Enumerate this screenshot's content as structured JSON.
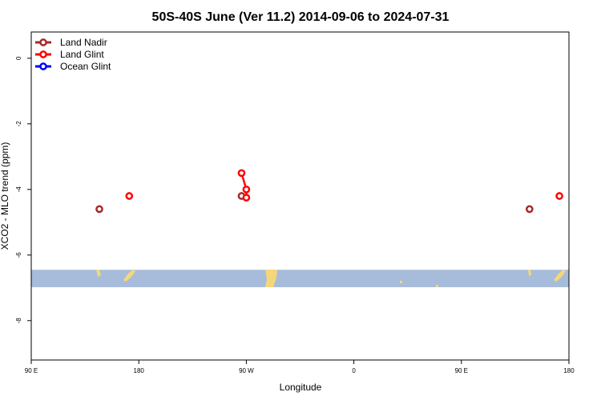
{
  "chart_data": {
    "type": "scatter",
    "title": "50S-40S June (Ver 11.2)   2014-09-06 to 2024-07-31",
    "xlabel": "Longitude",
    "ylabel": "XCO2 - MLO trend (ppm)",
    "xlim": [
      90,
      540
    ],
    "ylim": [
      -9.2,
      0.8
    ],
    "x_ticks": [
      {
        "value": 90,
        "label": "90 E"
      },
      {
        "value": 180,
        "label": "180"
      },
      {
        "value": 270,
        "label": "90 W"
      },
      {
        "value": 360,
        "label": "0"
      },
      {
        "value": 450,
        "label": "90 E"
      },
      {
        "value": 540,
        "label": "180"
      }
    ],
    "y_ticks": [
      {
        "value": 0,
        "label": "0"
      },
      {
        "value": -2,
        "label": "-2"
      },
      {
        "value": -4,
        "label": "-4"
      },
      {
        "value": -6,
        "label": "-6"
      },
      {
        "value": -8,
        "label": "-8"
      }
    ],
    "legend_position": "top-left",
    "series": [
      {
        "name": "Land Nadir",
        "color": "#a52a2a",
        "points": [
          [
            147,
            -4.6
          ],
          [
            266,
            -4.2
          ],
          [
            507,
            -4.6
          ]
        ]
      },
      {
        "name": "Land Glint",
        "color": "#ff0000",
        "points": [
          [
            172,
            -4.2
          ],
          [
            266,
            -3.5
          ],
          [
            270,
            -4.0
          ],
          [
            270,
            -4.25
          ],
          [
            532,
            -4.2
          ]
        ]
      },
      {
        "name": "Ocean Glint",
        "color": "#0000ff",
        "points": []
      }
    ],
    "connected_segments": [
      {
        "series": "Land Glint",
        "points": [
          [
            266,
            -3.5
          ],
          [
            270,
            -4.0
          ],
          [
            270,
            -4.25
          ]
        ]
      }
    ],
    "map_strip": {
      "y_top": -6.45,
      "y_bottom": -6.98,
      "ocean_color": "#a7bcda",
      "land_color": "#f5d77a"
    }
  }
}
